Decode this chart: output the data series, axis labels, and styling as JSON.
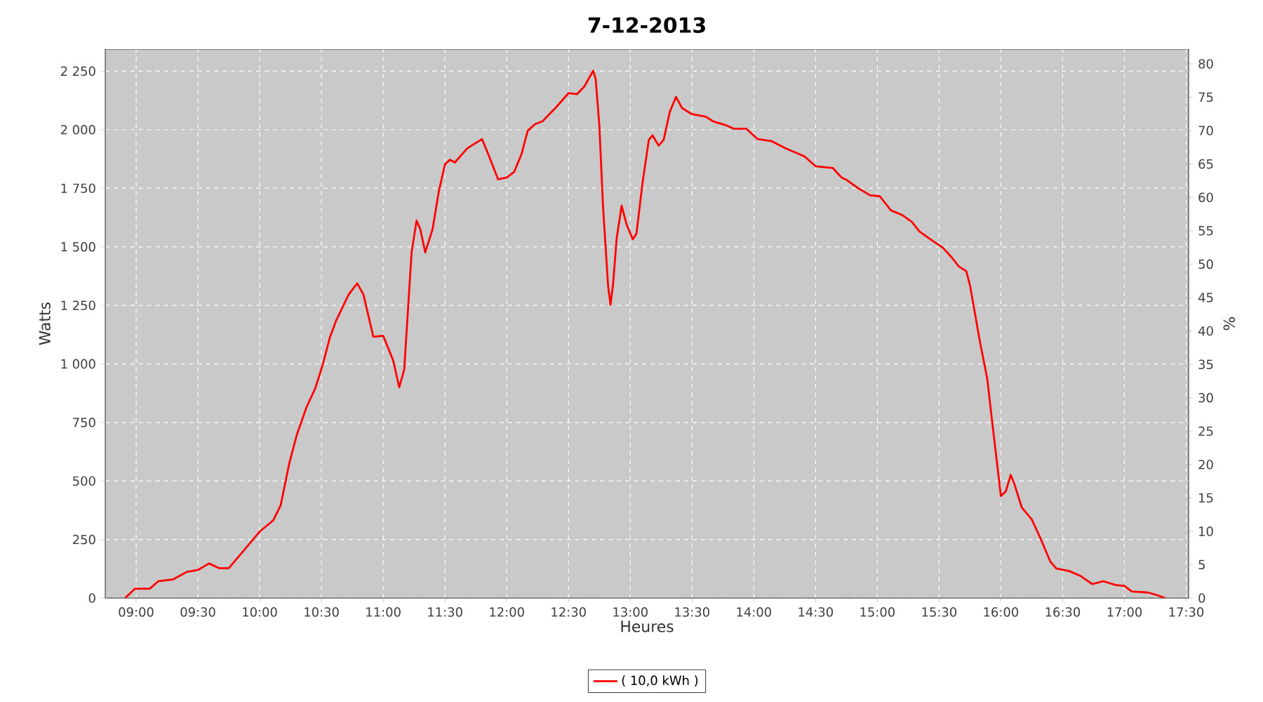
{
  "chart_data": {
    "type": "line",
    "title": "7-12-2013",
    "xlabel": "Heures",
    "ylabel": "Watts",
    "y2label": "%",
    "xlim": [
      8.75,
      17.52
    ],
    "ylim": [
      0,
      2344
    ],
    "y2lim": [
      0,
      82.2
    ],
    "xticks": [
      {
        "value": 9,
        "label": "09:00"
      },
      {
        "value": 9.5,
        "label": "09:30"
      },
      {
        "value": 10,
        "label": "10:00"
      },
      {
        "value": 10.5,
        "label": "10:30"
      },
      {
        "value": 11,
        "label": "11:00"
      },
      {
        "value": 11.5,
        "label": "11:30"
      },
      {
        "value": 12,
        "label": "12:00"
      },
      {
        "value": 12.5,
        "label": "12:30"
      },
      {
        "value": 13,
        "label": "13:00"
      },
      {
        "value": 13.5,
        "label": "13:30"
      },
      {
        "value": 14,
        "label": "14:00"
      },
      {
        "value": 14.5,
        "label": "14:30"
      },
      {
        "value": 15,
        "label": "15:00"
      },
      {
        "value": 15.5,
        "label": "15:30"
      },
      {
        "value": 16,
        "label": "16:00"
      },
      {
        "value": 16.5,
        "label": "16:30"
      },
      {
        "value": 17,
        "label": "17:00"
      },
      {
        "value": 17.5,
        "label": "17:30"
      }
    ],
    "yticks": [
      0,
      250,
      500,
      750,
      {
        "value": 1000,
        "label": "1 000"
      },
      {
        "value": 1250,
        "label": "1 250"
      },
      {
        "value": 1500,
        "label": "1 500"
      },
      {
        "value": 1750,
        "label": "1 750"
      },
      {
        "value": 2000,
        "label": "2 000"
      },
      {
        "value": 2250,
        "label": "2 250"
      }
    ],
    "y2ticks": [
      0,
      5,
      10,
      15,
      20,
      25,
      30,
      35,
      40,
      45,
      50,
      55,
      60,
      65,
      70,
      75,
      80
    ],
    "grid": true,
    "legend": "bottom",
    "line_style": "solid",
    "series": [
      {
        "name": "( 10,0 kWh )",
        "color": "#ff0000",
        "x": [
          8.91,
          8.99,
          9.11,
          9.18,
          9.3,
          9.41,
          9.5,
          9.59,
          9.67,
          9.75,
          9.86,
          10.0,
          10.11,
          10.17,
          10.24,
          10.3,
          10.38,
          10.45,
          10.51,
          10.57,
          10.62,
          10.72,
          10.79,
          10.84,
          10.92,
          11.0,
          11.08,
          11.13,
          11.17,
          11.23,
          11.27,
          11.3,
          11.34,
          11.4,
          11.45,
          11.5,
          11.54,
          11.58,
          11.68,
          11.8,
          11.85,
          11.93,
          12.0,
          12.06,
          12.12,
          12.17,
          12.23,
          12.29,
          12.4,
          12.5,
          12.57,
          12.63,
          12.7,
          12.72,
          12.75,
          12.78,
          12.82,
          12.84,
          12.86,
          12.89,
          12.93,
          12.97,
          13.02,
          13.05,
          13.1,
          13.15,
          13.18,
          13.23,
          13.27,
          13.32,
          13.37,
          13.42,
          13.5,
          13.61,
          13.67,
          13.77,
          13.84,
          13.94,
          14.03,
          14.14,
          14.26,
          14.41,
          14.5,
          14.64,
          14.71,
          14.75,
          14.84,
          14.94,
          15.02,
          15.11,
          15.2,
          15.28,
          15.34,
          15.43,
          15.53,
          15.6,
          15.66,
          15.72,
          15.75,
          15.79,
          15.83,
          15.89,
          15.92,
          15.96,
          16.0,
          16.04,
          16.08,
          16.11,
          16.17,
          16.25,
          16.32,
          16.4,
          16.45,
          16.55,
          16.64,
          16.74,
          16.83,
          16.93,
          17.0,
          17.06,
          17.19,
          17.27,
          17.33
        ],
        "values": [
          0,
          40,
          40,
          72,
          80,
          112,
          120,
          148,
          128,
          128,
          196,
          284,
          332,
          396,
          576,
          696,
          816,
          896,
          996,
          1116,
          1186,
          1296,
          1344,
          1296,
          1116,
          1120,
          1016,
          900,
          976,
          1476,
          1612,
          1576,
          1476,
          1576,
          1736,
          1852,
          1872,
          1860,
          1920,
          1960,
          1896,
          1788,
          1796,
          1820,
          1896,
          1996,
          2024,
          2036,
          2096,
          2156,
          2152,
          2186,
          2252,
          2216,
          2016,
          1666,
          1336,
          1252,
          1336,
          1536,
          1676,
          1596,
          1532,
          1556,
          1776,
          1956,
          1976,
          1932,
          1956,
          2076,
          2140,
          2092,
          2066,
          2056,
          2036,
          2020,
          2004,
          2004,
          1960,
          1952,
          1920,
          1886,
          1844,
          1836,
          1796,
          1786,
          1752,
          1720,
          1716,
          1656,
          1636,
          1606,
          1566,
          1532,
          1496,
          1456,
          1416,
          1396,
          1336,
          1216,
          1096,
          936,
          796,
          616,
          436,
          456,
          526,
          486,
          386,
          336,
          256,
          156,
          126,
          116,
          96,
          60,
          72,
          56,
          52,
          28,
          24,
          12,
          0
        ]
      }
    ]
  }
}
